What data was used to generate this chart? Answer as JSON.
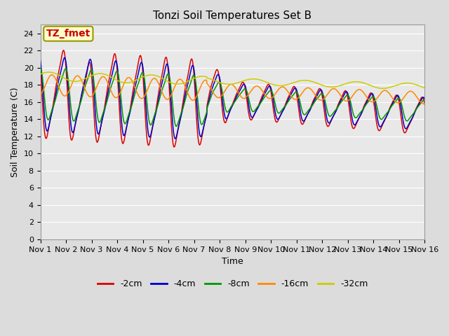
{
  "title": "Tonzi Soil Temperatures Set B",
  "xlabel": "Time",
  "ylabel": "Soil Temperature (C)",
  "annotation": "TZ_fmet",
  "annotation_color": "#cc0000",
  "annotation_bg": "#ffffcc",
  "annotation_border": "#999900",
  "ylim": [
    0,
    25
  ],
  "yticks": [
    0,
    2,
    4,
    6,
    8,
    10,
    12,
    14,
    16,
    18,
    20,
    22,
    24
  ],
  "series_colors": {
    "-2cm": "#dd0000",
    "-4cm": "#0000cc",
    "-8cm": "#009900",
    "-16cm": "#ff8800",
    "-32cm": "#cccc00"
  },
  "series_order": [
    "-2cm",
    "-4cm",
    "-8cm",
    "-16cm",
    "-32cm"
  ],
  "xtick_labels": [
    "Nov 1",
    "Nov 2",
    "Nov 3",
    "Nov 4",
    "Nov 5",
    "Nov 6",
    "Nov 7",
    "Nov 8",
    "Nov 9",
    "Nov 10",
    "Nov 11",
    "Nov 12",
    "Nov 13",
    "Nov 14",
    "Nov 15",
    "Nov 16"
  ],
  "background_color": "#e8e8e8",
  "plot_bg_color": "#e8e8e8",
  "grid_color": "#ffffff",
  "title_fontsize": 11,
  "axis_fontsize": 8,
  "legend_fontsize": 9
}
